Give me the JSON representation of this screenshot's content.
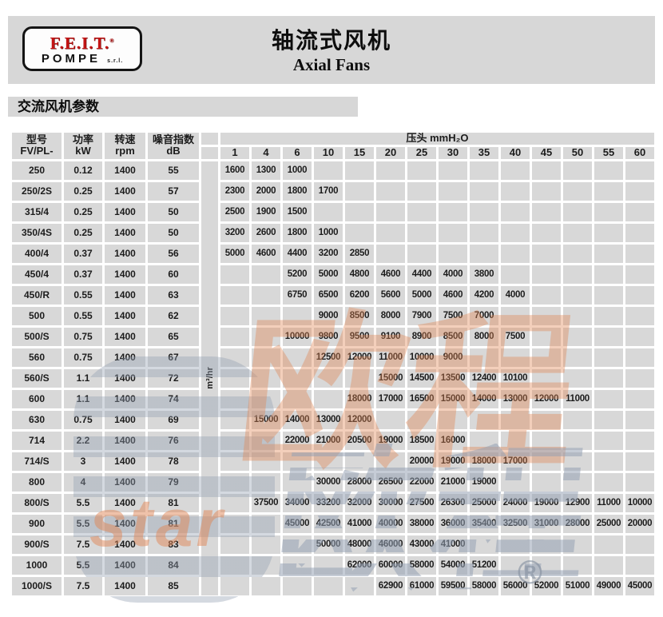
{
  "banner": {
    "logo": {
      "name": "F.E.I.T.",
      "reg": "®",
      "sub": "POMPE",
      "suffix": "s.r.l."
    },
    "title_zh": "轴流式风机",
    "title_en": "Axial Fans"
  },
  "section_title": "交流风机参数",
  "table": {
    "headers": {
      "model_zh": "型号",
      "model_sub": "FV/PL-",
      "power": "功率 kW",
      "speed_zh": "转速",
      "speed_sub": "rpm",
      "noise_zh": "噪音指数",
      "noise_sub": "dB",
      "pressure_label": "压头 mmH₂O",
      "flow_unit": "m³/hr"
    },
    "pressure_columns": [
      "1",
      "4",
      "6",
      "10",
      "15",
      "20",
      "25",
      "30",
      "35",
      "40",
      "45",
      "50",
      "55",
      "60"
    ],
    "rows": [
      {
        "model": "250",
        "power": "0.12",
        "rpm": "1400",
        "db": "55",
        "flows": [
          "1600",
          "1300",
          "1000",
          "",
          "",
          "",
          "",
          "",
          "",
          "",
          "",
          "",
          "",
          ""
        ]
      },
      {
        "model": "250/2S",
        "power": "0.25",
        "rpm": "1400",
        "db": "57",
        "flows": [
          "2300",
          "2000",
          "1800",
          "1700",
          "",
          "",
          "",
          "",
          "",
          "",
          "",
          "",
          "",
          ""
        ]
      },
      {
        "model": "315/4",
        "power": "0.25",
        "rpm": "1400",
        "db": "50",
        "flows": [
          "2500",
          "1900",
          "1500",
          "",
          "",
          "",
          "",
          "",
          "",
          "",
          "",
          "",
          "",
          ""
        ]
      },
      {
        "model": "350/4S",
        "power": "0.25",
        "rpm": "1400",
        "db": "50",
        "flows": [
          "3200",
          "2600",
          "1800",
          "1000",
          "",
          "",
          "",
          "",
          "",
          "",
          "",
          "",
          "",
          ""
        ]
      },
      {
        "model": "400/4",
        "power": "0.37",
        "rpm": "1400",
        "db": "56",
        "flows": [
          "5000",
          "4600",
          "4400",
          "3200",
          "2850",
          "",
          "",
          "",
          "",
          "",
          "",
          "",
          "",
          ""
        ]
      },
      {
        "model": "450/4",
        "power": "0.37",
        "rpm": "1400",
        "db": "60",
        "flows": [
          "",
          "",
          "5200",
          "5000",
          "4800",
          "4600",
          "4400",
          "4000",
          "3800",
          "",
          "",
          "",
          "",
          ""
        ]
      },
      {
        "model": "450/R",
        "power": "0.55",
        "rpm": "1400",
        "db": "63",
        "flows": [
          "",
          "",
          "6750",
          "6500",
          "6200",
          "5600",
          "5000",
          "4600",
          "4200",
          "4000",
          "",
          "",
          "",
          ""
        ]
      },
      {
        "model": "500",
        "power": "0.55",
        "rpm": "1400",
        "db": "62",
        "flows": [
          "",
          "",
          "",
          "9000",
          "8500",
          "8000",
          "7900",
          "7500",
          "7000",
          "",
          "",
          "",
          "",
          ""
        ]
      },
      {
        "model": "500/S",
        "power": "0.75",
        "rpm": "1400",
        "db": "65",
        "flows": [
          "",
          "",
          "10000",
          "9800",
          "9500",
          "9100",
          "8900",
          "8500",
          "8000",
          "7500",
          "",
          "",
          "",
          ""
        ]
      },
      {
        "model": "560",
        "power": "0.75",
        "rpm": "1400",
        "db": "67",
        "flows": [
          "",
          "",
          "",
          "12500",
          "12000",
          "11000",
          "10000",
          "9000",
          "",
          "",
          "",
          "",
          "",
          ""
        ]
      },
      {
        "model": "560/S",
        "power": "1.1",
        "rpm": "1400",
        "db": "72",
        "flows": [
          "",
          "",
          "",
          "",
          "",
          "15000",
          "14500",
          "13500",
          "12400",
          "10100",
          "",
          "",
          "",
          ""
        ]
      },
      {
        "model": "600",
        "power": "1.1",
        "rpm": "1400",
        "db": "74",
        "flows": [
          "",
          "",
          "",
          "",
          "18000",
          "17000",
          "16500",
          "15000",
          "14000",
          "13000",
          "12000",
          "11000",
          "",
          ""
        ]
      },
      {
        "model": "630",
        "power": "0.75",
        "rpm": "1400",
        "db": "69",
        "flows": [
          "",
          "15000",
          "14000",
          "13000",
          "12000",
          "",
          "",
          "",
          "",
          "",
          "",
          "",
          "",
          ""
        ]
      },
      {
        "model": "714",
        "power": "2.2",
        "rpm": "1400",
        "db": "76",
        "flows": [
          "",
          "",
          "22000",
          "21000",
          "20500",
          "19000",
          "18500",
          "16000",
          "",
          "",
          "",
          "",
          "",
          ""
        ]
      },
      {
        "model": "714/S",
        "power": "3",
        "rpm": "1400",
        "db": "78",
        "flows": [
          "",
          "",
          "",
          "",
          "",
          "",
          "20000",
          "19000",
          "18000",
          "17000",
          "",
          "",
          "",
          ""
        ]
      },
      {
        "model": "800",
        "power": "4",
        "rpm": "1400",
        "db": "79",
        "flows": [
          "",
          "",
          "",
          "30000",
          "28000",
          "26500",
          "22000",
          "21000",
          "19000",
          "",
          "",
          "",
          "",
          ""
        ]
      },
      {
        "model": "800/S",
        "power": "5.5",
        "rpm": "1400",
        "db": "81",
        "flows": [
          "",
          "37500",
          "34000",
          "33200",
          "32000",
          "30000",
          "27500",
          "26300",
          "25000",
          "24000",
          "19000",
          "12900",
          "11000",
          "10000"
        ]
      },
      {
        "model": "900",
        "power": "5.5",
        "rpm": "1400",
        "db": "81",
        "flows": [
          "",
          "",
          "45000",
          "42500",
          "41000",
          "40000",
          "38000",
          "36000",
          "35400",
          "32500",
          "31000",
          "28000",
          "25000",
          "20000"
        ]
      },
      {
        "model": "900/S",
        "power": "7.5",
        "rpm": "1400",
        "db": "83",
        "flows": [
          "",
          "",
          "",
          "50000",
          "48000",
          "46000",
          "43000",
          "41000",
          "",
          "",
          "",
          "",
          "",
          ""
        ]
      },
      {
        "model": "1000",
        "power": "5.5",
        "rpm": "1400",
        "db": "84",
        "flows": [
          "",
          "",
          "",
          "",
          "62000",
          "60000",
          "58000",
          "54000",
          "51200",
          "",
          "",
          "",
          "",
          ""
        ]
      },
      {
        "model": "1000/S",
        "power": "7.5",
        "rpm": "1400",
        "db": "85",
        "flows": [
          "",
          "",
          "",
          "",
          "",
          "62900",
          "61000",
          "59500",
          "58000",
          "56000",
          "52000",
          "51000",
          "49000",
          "45000"
        ]
      }
    ]
  },
  "watermark": {
    "cn": "欧程",
    "star": "star",
    "reg": "®"
  },
  "colors": {
    "banner_gray": "#d7d7d7",
    "cell_gray": "#d8d8d8",
    "logo_red": "#c31414",
    "watermark_orange": "#e08656",
    "watermark_gray": "#94a0b2"
  }
}
